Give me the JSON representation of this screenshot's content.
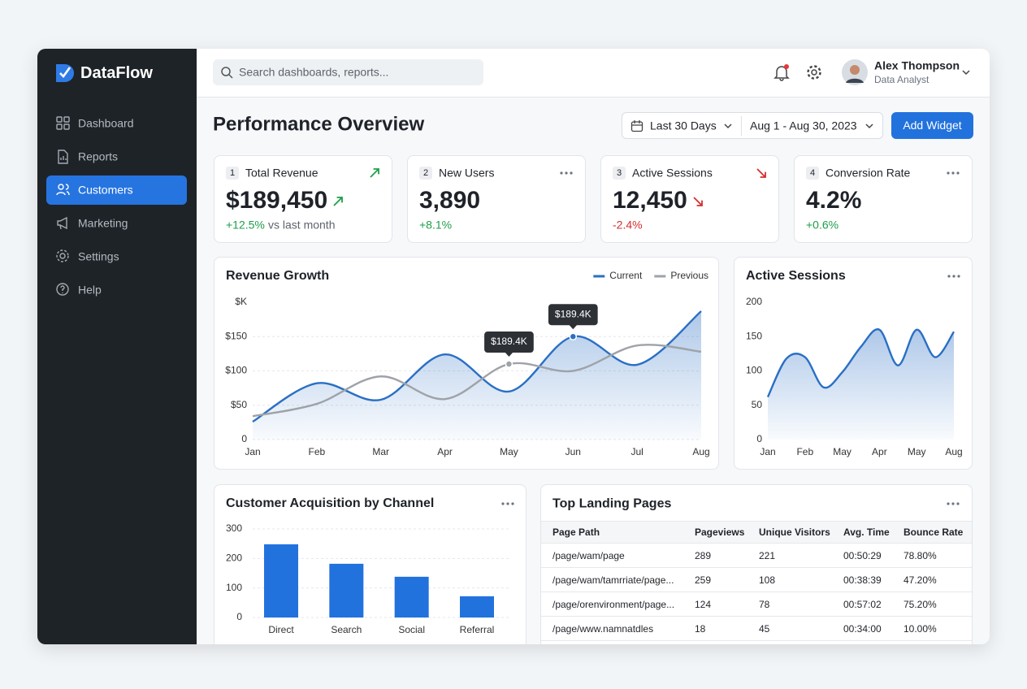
{
  "sidebar": {
    "brand": "DataFlow",
    "nav": [
      {
        "label": "Dashboard"
      },
      {
        "label": "Reports"
      },
      {
        "label": "Customers",
        "active": true
      },
      {
        "label": "Marketing"
      },
      {
        "label": "Settings"
      },
      {
        "label": "Help"
      }
    ]
  },
  "header": {
    "search_placeholder": "Search dashboards, reports...",
    "user": {
      "name": "Alex Thompson",
      "role": "Data Analyst"
    }
  },
  "page": {
    "title": "Performance Overview",
    "date_range": "Last 30 Days",
    "dates": "Aug 1 - Aug 30, 2023",
    "button": "Add Widget"
  },
  "kpis": [
    {
      "index": 1,
      "label": "Total Revenue",
      "value": "$189,450",
      "change": "+12.5%",
      "note": "vs last month",
      "trend": "up"
    },
    {
      "index": 2,
      "label": "New Users",
      "value": "3,890",
      "change": "+8.1%"
    },
    {
      "index": 3,
      "label": "Active Sessions",
      "value": "12,450",
      "change": "-2.4%",
      "trend": "down"
    },
    {
      "index": 4,
      "label": "Conversion Rate",
      "value": "4.2%",
      "change": "+0.6%"
    }
  ],
  "chart_data": [
    {
      "type": "line",
      "title": "Revenue Growth",
      "y_label": "$K",
      "categories": [
        "Jan",
        "Feb",
        "Mar",
        "Apr",
        "May",
        "Jun",
        "Jul",
        "Aug"
      ],
      "series": [
        {
          "name": "Current",
          "color": "#2a6fc4",
          "area": true,
          "values": [
            26,
            82,
            58,
            124,
            70,
            150,
            109,
            187
          ]
        },
        {
          "name": "Previous",
          "color": "#9ea3a9",
          "values": [
            34,
            52,
            92,
            59,
            110,
            100,
            137,
            128
          ]
        }
      ],
      "ylim": [
        0,
        200
      ],
      "yticks": [
        0,
        {
          "value": 50,
          "label": "$50"
        },
        {
          "value": 100,
          "label": "$100"
        },
        {
          "value": 150,
          "label": "$150"
        }
      ],
      "grid": true,
      "legend": "top-right",
      "annotations": [
        {
          "text": "$189.4K",
          "series": 0,
          "index": 5
        },
        {
          "text": "$189.4K",
          "series": 1,
          "index": 4
        }
      ]
    },
    {
      "type": "line",
      "title": "Active Sessions",
      "categories": [
        "Jan",
        null,
        "Feb",
        null,
        "May",
        null,
        "Apr",
        null,
        "May",
        null,
        "Aug"
      ],
      "series": [
        {
          "name": "Sessions",
          "color": "#2a6fc4",
          "area": true,
          "values": [
            62,
            118,
            120,
            76,
            98,
            135,
            160,
            108,
            160,
            120,
            157
          ]
        }
      ],
      "ylim": [
        0,
        200
      ],
      "yticks": [
        0,
        50,
        100,
        150,
        200
      ],
      "grid": false
    },
    {
      "type": "bar",
      "title": "Customer Acquisition by Channel",
      "categories": [
        "Direct",
        "Search",
        "Social",
        "Referral"
      ],
      "values": [
        248,
        182,
        138,
        72
      ],
      "color": "#2272dd",
      "ylim": [
        0,
        300
      ],
      "yticks": [
        0,
        100,
        200,
        300
      ],
      "grid": true
    }
  ],
  "table": {
    "title": "Top Landing Pages",
    "columns": [
      "Page Path",
      "Pageviews",
      "Unique Visitors",
      "Avg. Time",
      "Bounce Rate"
    ],
    "rows": [
      [
        "/page/wam/page",
        289,
        221,
        "00:50:29",
        "78.80%"
      ],
      [
        "/page/wam/tamrriate/page...",
        259,
        108,
        "00:38:39",
        "47.20%"
      ],
      [
        "/page/orenvironment/page...",
        124,
        78,
        "00:57:02",
        "75.20%"
      ],
      [
        "/page/www.namnatdles",
        18,
        45,
        "00:34:00",
        "10.00%"
      ]
    ]
  }
}
